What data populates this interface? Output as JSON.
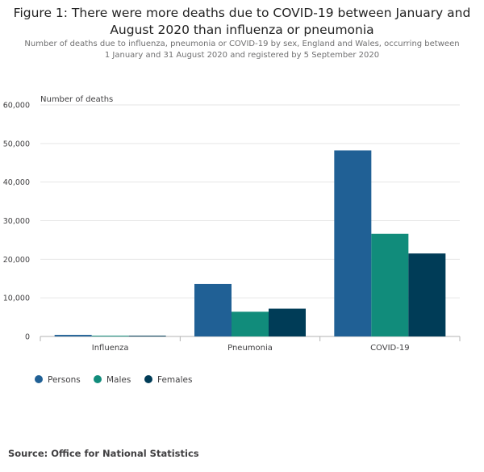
{
  "header": {
    "title": "Figure 1: There were more deaths due to COVID-19 between January and August 2020 than influenza or pneumonia",
    "subtitle": "Number of deaths due to influenza, pneumonia or COVID-19 by sex, England and Wales, occurring between 1 January and 31 August 2020 and registered by 5 September 2020"
  },
  "chart_data": {
    "type": "bar",
    "ylabel": "Number of deaths",
    "xlabel": "",
    "categories": [
      "Influenza",
      "Pneumonia",
      "COVID-19"
    ],
    "ylim": [
      0,
      60000
    ],
    "yticks": [
      0,
      10000,
      20000,
      30000,
      40000,
      50000,
      60000
    ],
    "ytick_labels": [
      "0",
      "10,000",
      "20,000",
      "30,000",
      "40,000",
      "50,000",
      "60,000"
    ],
    "series": [
      {
        "name": "Persons",
        "color": "#206095",
        "values": [
          400,
          13600,
          48200
        ]
      },
      {
        "name": "Males",
        "color": "#118c7b",
        "values": [
          200,
          6400,
          26600
        ]
      },
      {
        "name": "Females",
        "color": "#003c57",
        "values": [
          200,
          7200,
          21500
        ]
      }
    ],
    "grid": true,
    "legend_position": "bottom-left"
  },
  "footer": {
    "source": "Source: Office for National Statistics"
  }
}
